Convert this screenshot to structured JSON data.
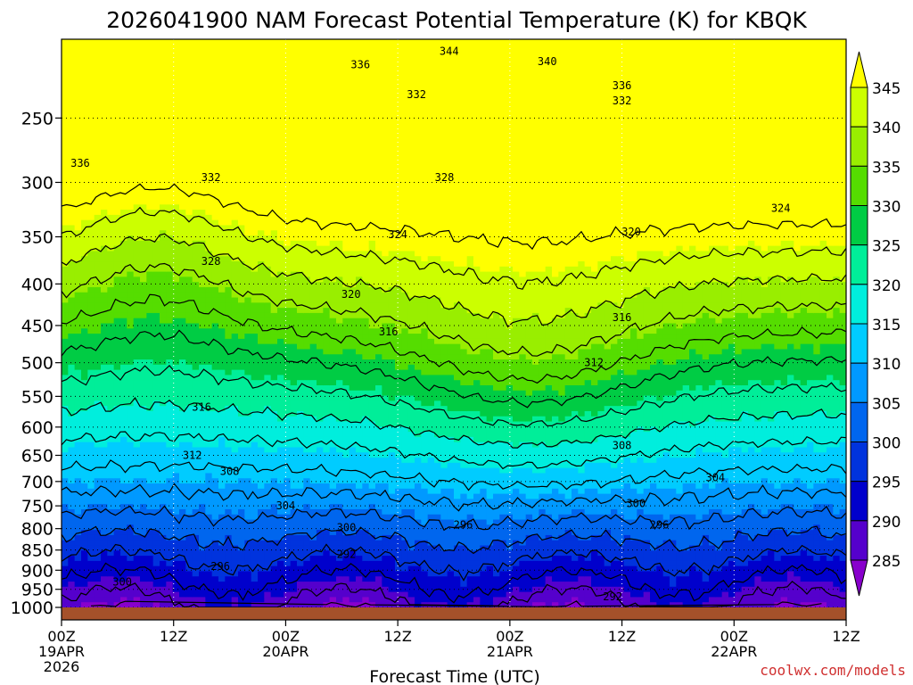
{
  "chart_data": {
    "type": "heatmap",
    "title": "2026041900 NAM Forecast Potential Temperature (K) for KBQK",
    "xlabel": "Forecast Time (UTC)",
    "ylabel": "",
    "credit": "coolwx.com/models",
    "y_axis": {
      "scale": "log-pressure",
      "range_hpa": [
        1000,
        200
      ],
      "reversed": true,
      "ticks": [
        "250",
        "300",
        "350",
        "400",
        "450",
        "500",
        "550",
        "600",
        "650",
        "700",
        "750",
        "800",
        "850",
        "900",
        "950",
        "1000"
      ],
      "tick_values": [
        250,
        300,
        350,
        400,
        450,
        500,
        550,
        600,
        650,
        700,
        750,
        800,
        850,
        900,
        950,
        1000
      ]
    },
    "x_axis": {
      "range_hours": [
        0,
        84
      ],
      "ticks": [
        {
          "hour": 0,
          "lines": [
            "00Z",
            "19APR",
            "2026"
          ]
        },
        {
          "hour": 12,
          "lines": [
            "12Z"
          ]
        },
        {
          "hour": 24,
          "lines": [
            "00Z",
            "20APR"
          ]
        },
        {
          "hour": 36,
          "lines": [
            "12Z"
          ]
        },
        {
          "hour": 48,
          "lines": [
            "00Z",
            "21APR"
          ]
        },
        {
          "hour": 60,
          "lines": [
            "12Z"
          ]
        },
        {
          "hour": 72,
          "lines": [
            "00Z",
            "22APR"
          ]
        },
        {
          "hour": 84,
          "lines": [
            "12Z"
          ]
        }
      ]
    },
    "grid": true,
    "colorbar": {
      "placement": "right",
      "labels": [
        "345",
        "340",
        "335",
        "330",
        "325",
        "320",
        "315",
        "310",
        "305",
        "300",
        "295",
        "290",
        "285"
      ],
      "colors": [
        "#ffff00",
        "#ccff00",
        "#99ee00",
        "#55dd00",
        "#00cc44",
        "#00ee99",
        "#00eedd",
        "#00ccff",
        "#0099ff",
        "#0066ee",
        "#0033dd",
        "#0000cc",
        "#5500cc",
        "#8800cc"
      ]
    },
    "levels_interval_k": 4,
    "contour_labels": [
      {
        "text": "344",
        "hour": 41.5,
        "p": 207
      },
      {
        "text": "340",
        "hour": 52,
        "p": 213
      },
      {
        "text": "336",
        "hour": 32,
        "p": 215
      },
      {
        "text": "336",
        "hour": 60,
        "p": 228
      },
      {
        "text": "332",
        "hour": 38,
        "p": 234
      },
      {
        "text": "332",
        "hour": 60,
        "p": 238
      },
      {
        "text": "336",
        "hour": 2,
        "p": 284
      },
      {
        "text": "332",
        "hour": 16,
        "p": 296
      },
      {
        "text": "328",
        "hour": 41,
        "p": 296
      },
      {
        "text": "324",
        "hour": 77,
        "p": 323
      },
      {
        "text": "324",
        "hour": 36,
        "p": 348
      },
      {
        "text": "320",
        "hour": 61,
        "p": 345
      },
      {
        "text": "328",
        "hour": 16,
        "p": 375
      },
      {
        "text": "320",
        "hour": 31,
        "p": 412
      },
      {
        "text": "316",
        "hour": 60,
        "p": 440
      },
      {
        "text": "316",
        "hour": 35,
        "p": 458
      },
      {
        "text": "312",
        "hour": 57,
        "p": 500
      },
      {
        "text": "316",
        "hour": 15,
        "p": 567
      },
      {
        "text": "308",
        "hour": 60,
        "p": 632
      },
      {
        "text": "312",
        "hour": 14,
        "p": 650
      },
      {
        "text": "308",
        "hour": 18,
        "p": 680
      },
      {
        "text": "304",
        "hour": 70,
        "p": 692
      },
      {
        "text": "304",
        "hour": 24,
        "p": 750
      },
      {
        "text": "300",
        "hour": 61.5,
        "p": 745
      },
      {
        "text": "296",
        "hour": 43,
        "p": 792
      },
      {
        "text": "296",
        "hour": 64,
        "p": 792
      },
      {
        "text": "300",
        "hour": 30.5,
        "p": 798
      },
      {
        "text": "292",
        "hour": 30.5,
        "p": 860
      },
      {
        "text": "296",
        "hour": 17,
        "p": 890
      },
      {
        "text": "300",
        "hour": 6.5,
        "p": 930
      },
      {
        "text": "292",
        "hour": 59,
        "p": 970
      }
    ],
    "terrain_color": "#a5512a"
  }
}
